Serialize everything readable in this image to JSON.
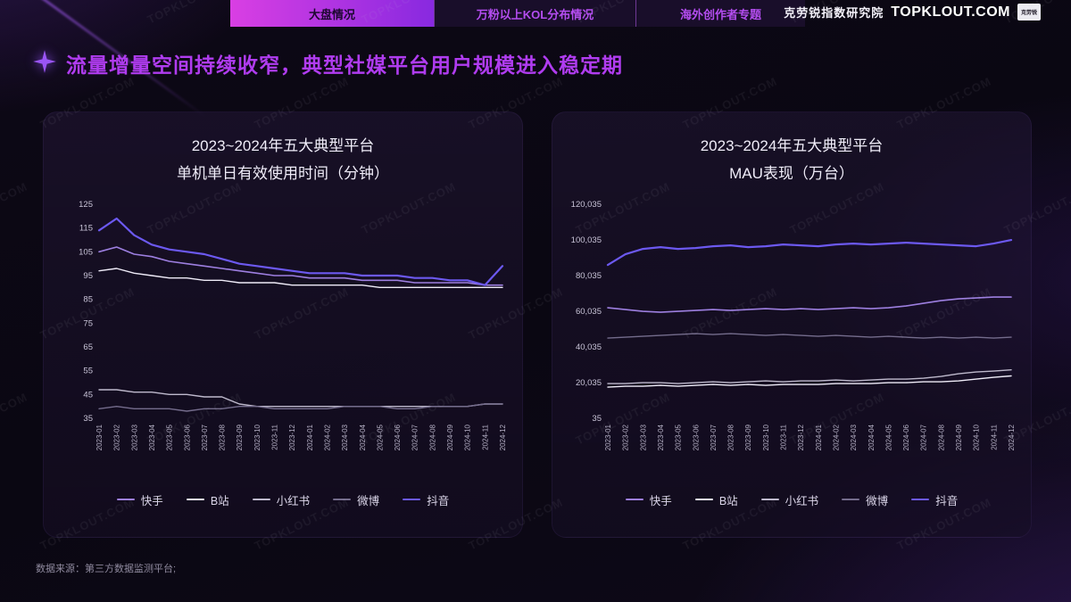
{
  "topbar": {
    "tabs": [
      {
        "label": "大盘情况",
        "active": true
      },
      {
        "label": "万粉以上KOL分布情况",
        "active": false
      },
      {
        "label": "海外创作者专题",
        "active": false
      }
    ],
    "brand_cn": "克劳锐指数研究院",
    "brand_en": "TOPKLOUT.COM",
    "logo_text": "克劳锐"
  },
  "title": "流量增量空间持续收窄，典型社媒平台用户规模进入稳定期",
  "footer": {
    "source": "数据来源：第三方数据监测平台;"
  },
  "watermark": {
    "text": "TOPKLOUT.COM"
  },
  "colors": {
    "title_accent": "#b03cf0",
    "tab_active_start": "#d93fe3",
    "tab_active_end": "#8829e0",
    "tab_inactive_text": "#b44df0",
    "background": "#0b0712"
  },
  "chart_data": [
    {
      "type": "line",
      "title_line1": "2023~2024年五大典型平台",
      "title_line2": "单机单日有效使用时间（分钟）",
      "x": [
        "2023-01",
        "2023-02",
        "2023-03",
        "2023-04",
        "2023-05",
        "2023-06",
        "2023-07",
        "2023-08",
        "2023-09",
        "2023-10",
        "2023-11",
        "2023-12",
        "2024-01",
        "2024-02",
        "2024-03",
        "2024-04",
        "2024-05",
        "2024-06",
        "2024-07",
        "2024-08",
        "2024-09",
        "2024-10",
        "2024-11",
        "2024-12"
      ],
      "ylim": [
        35,
        125
      ],
      "yticks": [
        35,
        45,
        55,
        65,
        75,
        85,
        95,
        105,
        115,
        125
      ],
      "ytick_labels": [
        "35",
        "45",
        "55",
        "65",
        "75",
        "85",
        "95",
        "105",
        "115",
        "125"
      ],
      "grid": false,
      "legend_position": "bottom",
      "series": [
        {
          "name": "快手",
          "color": "#9d7fe0",
          "width": 1.6,
          "values": [
            105,
            107,
            104,
            103,
            101,
            100,
            99,
            98,
            97,
            96,
            95,
            95,
            94,
            94,
            94,
            93,
            93,
            93,
            92,
            92,
            92,
            92,
            91,
            91
          ]
        },
        {
          "name": "B站",
          "color": "#efecf8",
          "width": 1.4,
          "values": [
            97,
            98,
            96,
            95,
            94,
            94,
            93,
            93,
            92,
            92,
            92,
            91,
            91,
            91,
            91,
            91,
            90,
            90,
            90,
            90,
            90,
            90,
            90,
            90
          ]
        },
        {
          "name": "小红书",
          "color": "#beb9cc",
          "width": 1.4,
          "values": [
            47,
            47,
            46,
            46,
            45,
            45,
            44,
            44,
            41,
            40,
            40,
            40,
            40,
            40,
            40,
            40,
            40,
            40,
            40,
            40,
            40,
            40,
            41,
            41
          ]
        },
        {
          "name": "微博",
          "color": "#746c8c",
          "width": 1.4,
          "values": [
            39,
            40,
            39,
            39,
            39,
            38,
            39,
            39,
            40,
            40,
            39,
            39,
            39,
            39,
            40,
            40,
            40,
            39,
            39,
            40,
            40,
            40,
            41,
            41
          ]
        },
        {
          "name": "抖音",
          "color": "#6c59f0",
          "width": 2.2,
          "values": [
            114,
            119,
            112,
            108,
            106,
            105,
            104,
            102,
            100,
            99,
            98,
            97,
            96,
            96,
            96,
            95,
            95,
            95,
            94,
            94,
            93,
            93,
            91,
            99
          ]
        }
      ]
    },
    {
      "type": "line",
      "title_line1": "2023~2024年五大典型平台",
      "title_line2": "MAU表现（万台）",
      "x": [
        "2023-01",
        "2023-02",
        "2023-03",
        "2023-04",
        "2023-05",
        "2023-06",
        "2023-07",
        "2023-08",
        "2023-09",
        "2023-10",
        "2023-11",
        "2023-12",
        "2024-01",
        "2024-02",
        "2024-03",
        "2024-04",
        "2024-05",
        "2024-06",
        "2024-07",
        "2024-08",
        "2024-09",
        "2024-10",
        "2024-11",
        "2024-12"
      ],
      "ylim": [
        35,
        120035
      ],
      "yticks": [
        35,
        20035,
        40035,
        60035,
        80035,
        100035,
        120035
      ],
      "ytick_labels": [
        "35",
        "20,035",
        "40,035",
        "60,035",
        "80,035",
        "100,035",
        "120,035"
      ],
      "grid": false,
      "legend_position": "bottom",
      "series": [
        {
          "name": "快手",
          "color": "#9d7fe0",
          "width": 1.6,
          "values": [
            62000,
            61000,
            60000,
            59500,
            60000,
            60500,
            61000,
            60500,
            61000,
            61500,
            61000,
            61500,
            61000,
            61500,
            62000,
            61500,
            62000,
            63000,
            64500,
            66000,
            67000,
            67500,
            68000,
            68000
          ]
        },
        {
          "name": "B站",
          "color": "#efecf8",
          "width": 1.4,
          "values": [
            17500,
            18000,
            18000,
            18500,
            18000,
            18500,
            19000,
            18500,
            19000,
            18500,
            19000,
            19000,
            19000,
            19500,
            19500,
            19500,
            20000,
            20000,
            20500,
            20500,
            21000,
            22000,
            23000,
            23800
          ]
        },
        {
          "name": "小红书",
          "color": "#beb9cc",
          "width": 1.4,
          "values": [
            19500,
            19500,
            20000,
            20000,
            19500,
            20000,
            20500,
            20000,
            20500,
            21000,
            20500,
            21000,
            21000,
            21500,
            21000,
            21500,
            22000,
            22000,
            22500,
            23500,
            25000,
            26000,
            26500,
            27200
          ]
        },
        {
          "name": "微博",
          "color": "#746c8c",
          "width": 1.4,
          "values": [
            45000,
            45500,
            46000,
            46500,
            47000,
            47500,
            47000,
            47500,
            47000,
            46500,
            47000,
            46500,
            46000,
            46500,
            46000,
            45500,
            46000,
            45500,
            45000,
            45500,
            45000,
            45500,
            45000,
            45500
          ]
        },
        {
          "name": "抖音",
          "color": "#6c59f0",
          "width": 2.2,
          "values": [
            86000,
            92000,
            95000,
            96000,
            95000,
            95500,
            96500,
            97000,
            96000,
            96500,
            97500,
            97000,
            96500,
            97500,
            98000,
            97500,
            98000,
            98500,
            98000,
            97500,
            97000,
            96500,
            98000,
            100000
          ]
        }
      ]
    }
  ]
}
